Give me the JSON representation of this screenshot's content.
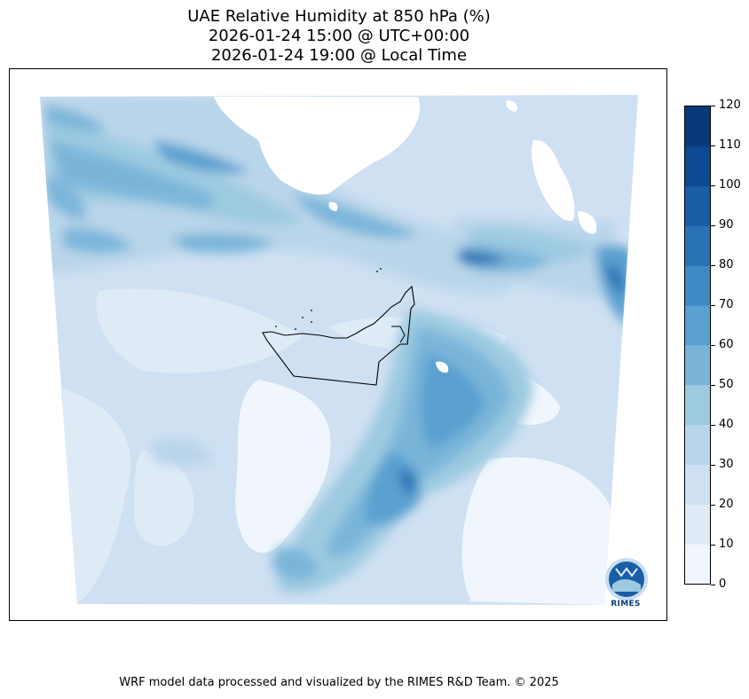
{
  "title": {
    "line1": "UAE Relative Humidity at 850 hPa (%)",
    "line2": "2026-01-24 15:00 @ UTC+00:00",
    "line3": "2026-01-24 19:00 @ Local Time"
  },
  "colorbar": {
    "ticks": [
      "0",
      "10",
      "20",
      "30",
      "40",
      "50",
      "60",
      "70",
      "80",
      "90",
      "100",
      "110",
      "120"
    ],
    "min": 0,
    "max": 120,
    "colors": [
      "#f0f6fc",
      "#deebf7",
      "#cfe0f2",
      "#b9d5ea",
      "#9dcae1",
      "#7ab5d9",
      "#5aa0d0",
      "#3f8ac4",
      "#2a72b6",
      "#1a5ea8",
      "#0c4a95",
      "#083a7a"
    ]
  },
  "footer": "WRF model data processed and visualized by the RIMES R&D Team. © 2025",
  "logo": {
    "text": "RIMES",
    "icon": "rimes-logo-icon"
  }
}
